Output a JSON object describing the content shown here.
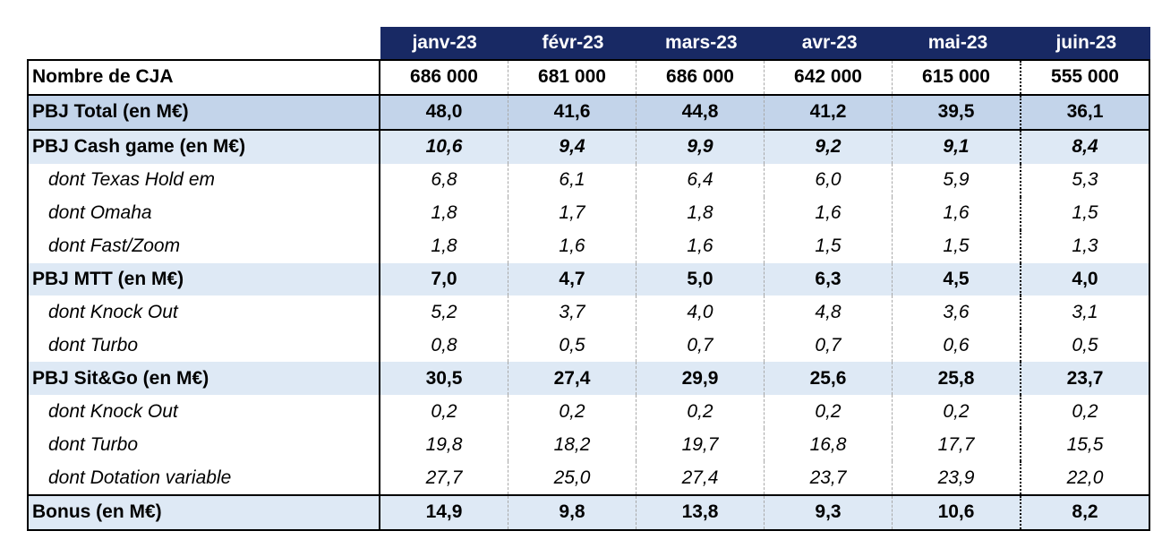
{
  "colors": {
    "header_bg": "#182964",
    "header_text": "#ffffff",
    "total_row_bg": "#C3D4EA",
    "section_row_bg": "#DEE9F5",
    "border": "#000000"
  },
  "chart_data": {
    "type": "table",
    "columns": [
      "janv-23",
      "févr-23",
      "mars-23",
      "avr-23",
      "mai-23",
      "juin-23"
    ],
    "rows": [
      {
        "label": "Nombre de CJA",
        "values": [
          "686 000",
          "681 000",
          "686 000",
          "642 000",
          "615 000",
          "555 000"
        ]
      },
      {
        "label": "PBJ Total (en M€)",
        "values": [
          "48,0",
          "41,6",
          "44,8",
          "41,2",
          "39,5",
          "36,1"
        ]
      },
      {
        "label": "PBJ Cash game (en M€)",
        "values": [
          "10,6",
          "9,4",
          "9,9",
          "9,2",
          "9,1",
          "8,4"
        ]
      },
      {
        "label": "dont Texas Hold em",
        "values": [
          "6,8",
          "6,1",
          "6,4",
          "6,0",
          "5,9",
          "5,3"
        ]
      },
      {
        "label": "dont Omaha",
        "values": [
          "1,8",
          "1,7",
          "1,8",
          "1,6",
          "1,6",
          "1,5"
        ]
      },
      {
        "label": "dont Fast/Zoom",
        "values": [
          "1,8",
          "1,6",
          "1,6",
          "1,5",
          "1,5",
          "1,3"
        ]
      },
      {
        "label": "PBJ MTT (en M€)",
        "values": [
          "7,0",
          "4,7",
          "5,0",
          "6,3",
          "4,5",
          "4,0"
        ]
      },
      {
        "label": "dont Knock Out",
        "values": [
          "5,2",
          "3,7",
          "4,0",
          "4,8",
          "3,6",
          "3,1"
        ]
      },
      {
        "label": "dont Turbo",
        "values": [
          "0,8",
          "0,5",
          "0,7",
          "0,7",
          "0,6",
          "0,5"
        ]
      },
      {
        "label": "PBJ Sit&Go (en M€)",
        "values": [
          "30,5",
          "27,4",
          "29,9",
          "25,6",
          "25,8",
          "23,7"
        ]
      },
      {
        "label": "dont Knock Out",
        "values": [
          "0,2",
          "0,2",
          "0,2",
          "0,2",
          "0,2",
          "0,2"
        ]
      },
      {
        "label": "dont Turbo",
        "values": [
          "19,8",
          "18,2",
          "19,7",
          "16,8",
          "17,7",
          "15,5"
        ]
      },
      {
        "label": "dont Dotation variable",
        "values": [
          "27,7",
          "25,0",
          "27,4",
          "23,7",
          "23,9",
          "22,0"
        ]
      },
      {
        "label": "Bonus (en M€)",
        "values": [
          "14,9",
          "9,8",
          "13,8",
          "9,3",
          "10,6",
          "8,2"
        ]
      }
    ]
  }
}
